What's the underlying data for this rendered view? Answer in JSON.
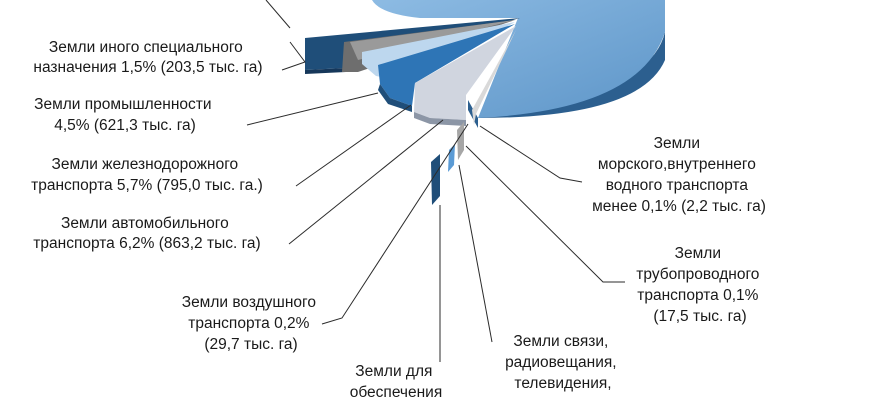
{
  "chart_data": {
    "type": "pie",
    "title": "",
    "slices": [
      {
        "label_lines": [
          "Земли иного специального",
          "назначения 1,5% (203,5 тыс. га)"
        ],
        "percent": 1.5,
        "area": "203,5 тыс. га",
        "color": "#1f4e79"
      },
      {
        "label_lines": [
          "Земли промышленности",
          "4,5% (621,3 тыс. га)"
        ],
        "percent": 4.5,
        "area": "621,3 тыс. га",
        "color": "#2e75b6"
      },
      {
        "label_lines": [
          "Земли железнодорожного",
          "транспорта  5,7% (795,0 тыс. га.)"
        ],
        "percent": 5.7,
        "area": "795,0 тыс. га.",
        "color": "#bdd7ee"
      },
      {
        "label_lines": [
          "Земли автомобильного",
          "транспорта  6,2% (863,2 тыс. га)"
        ],
        "percent": 6.2,
        "area": "863,2 тыс. га",
        "color": "#d0d5df"
      },
      {
        "label_lines": [
          "Земли воздушного",
          "транспорта 0,2%",
          "(29,7 тыс. га)"
        ],
        "percent": 0.2,
        "area": "29,7 тыс. га",
        "color": "#7f8c9a"
      },
      {
        "label_lines": [
          "Земли для",
          "обеспечения"
        ],
        "percent": null,
        "area": "",
        "color": "#1f4e79"
      },
      {
        "label_lines": [
          "Земли связи,",
          "радиовещания,",
          "телевидения,"
        ],
        "percent": null,
        "area": "",
        "color": "#a6a6a6"
      },
      {
        "label_lines": [
          "Земли",
          "трубопроводного",
          "транспорта 0,1%",
          "(17,5 тыс. га)"
        ],
        "percent": 0.1,
        "area": "17,5 тыс. га",
        "color": "#5b9bd5"
      },
      {
        "label_lines": [
          "Земли",
          "морского,внутреннего",
          "водного транспорта",
          "менее 0,1% (2,2 тыс. га)"
        ],
        "percent": 0.1,
        "area": "2,2 тыс. га",
        "color": "#2f5597"
      }
    ],
    "large_slice_color": "#6fa6d6"
  }
}
